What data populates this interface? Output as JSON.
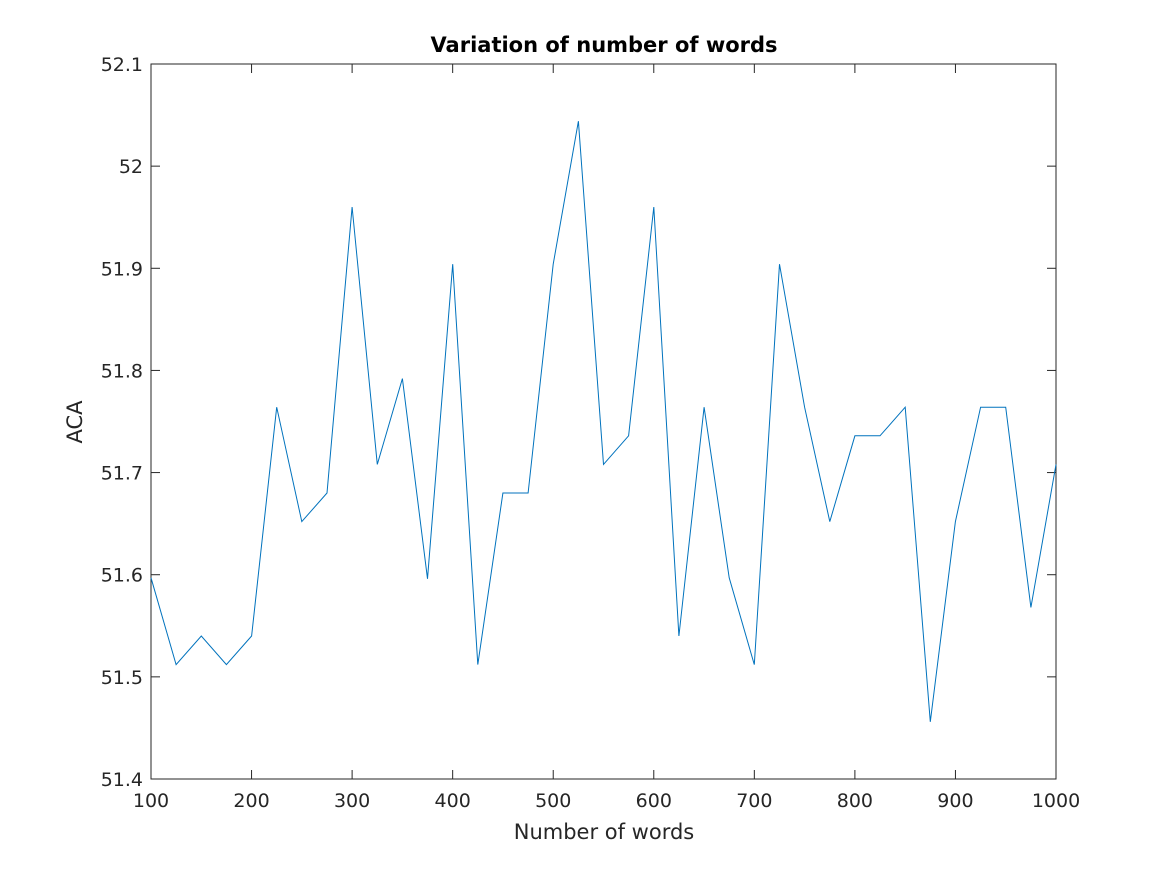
{
  "chart_data": {
    "type": "line",
    "title": "Variation of number of words",
    "xlabel": "Number of words",
    "ylabel": "ACA",
    "xlim": [
      100,
      1000
    ],
    "ylim": [
      51.4,
      52.1
    ],
    "xticks": [
      100,
      200,
      300,
      400,
      500,
      600,
      700,
      800,
      900,
      1000
    ],
    "xtick_labels": [
      "100",
      "200",
      "300",
      "400",
      "500",
      "600",
      "700",
      "800",
      "900",
      "1000"
    ],
    "yticks": [
      51.4,
      51.5,
      51.6,
      51.7,
      51.8,
      51.9,
      52.0,
      52.1
    ],
    "ytick_labels": [
      "51.4",
      "51.5",
      "51.6",
      "51.7",
      "51.8",
      "51.9",
      "52",
      "52.1"
    ],
    "grid": false,
    "box": true,
    "series": [
      {
        "color": "#0072bd",
        "x": [
          100,
          125,
          150,
          175,
          200,
          225,
          250,
          275,
          300,
          325,
          350,
          375,
          400,
          425,
          450,
          475,
          500,
          525,
          550,
          575,
          600,
          625,
          650,
          675,
          700,
          725,
          750,
          775,
          800,
          825,
          850,
          875,
          900,
          925,
          950,
          975,
          1000
        ],
        "y": [
          51.597,
          51.512,
          51.54,
          51.512,
          51.54,
          51.764,
          51.652,
          51.68,
          51.96,
          51.708,
          51.792,
          51.596,
          51.904,
          51.512,
          51.68,
          51.68,
          51.904,
          52.044,
          51.708,
          51.736,
          51.96,
          51.54,
          51.764,
          51.597,
          51.512,
          51.904,
          51.764,
          51.652,
          51.736,
          51.736,
          51.764,
          51.456,
          51.652,
          51.764,
          51.764,
          51.568,
          51.708
        ]
      }
    ]
  }
}
